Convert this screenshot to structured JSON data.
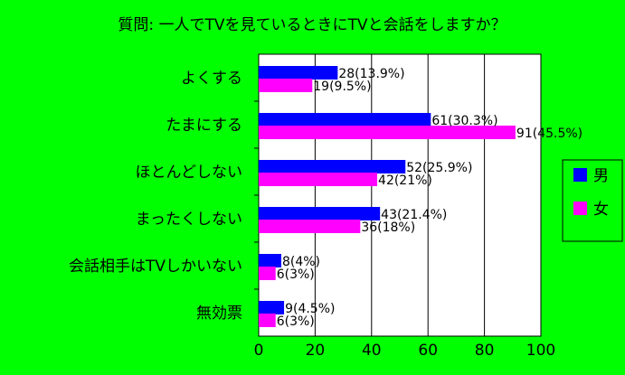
{
  "chart_data": {
    "type": "bar",
    "orientation": "horizontal",
    "title": "質問: 一人でTVを見ているときにTVと会話をしますか？",
    "categories": [
      "よくする",
      "たまにする",
      "ほとんどしない",
      "まったくしない",
      "会話相手はTVしかいない",
      "無効票"
    ],
    "series": [
      {
        "name": "男",
        "color": "#0000ff",
        "values": [
          28,
          61,
          52,
          43,
          8,
          9
        ],
        "labels": [
          "28(13.9%)",
          "61(30.3%)",
          "52(25.9%)",
          "43(21.4%)",
          "8(4%)",
          "9(4.5%)"
        ]
      },
      {
        "name": "女",
        "color": "#ff00ff",
        "values": [
          19,
          91,
          42,
          36,
          6,
          6
        ],
        "labels": [
          "19(9.5%)",
          "91(45.5%)",
          "42(21%)",
          "36(18%)",
          "6(3%)",
          "6(3%)"
        ]
      }
    ],
    "xlim": [
      0,
      100
    ],
    "xticks": [
      "0",
      "20",
      "40",
      "60",
      "80",
      "100"
    ],
    "grid": true,
    "legend": "right",
    "background": "#00ff00",
    "plot_background": "#ffffff"
  }
}
